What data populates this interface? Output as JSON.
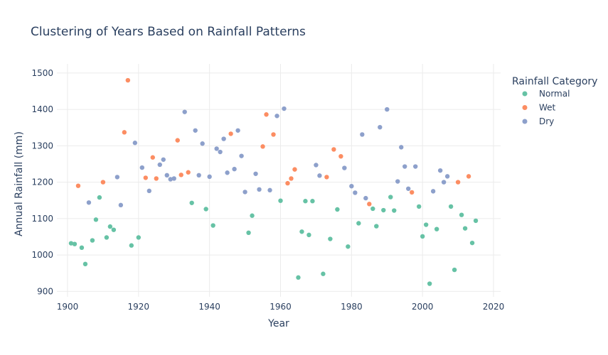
{
  "chart_data": {
    "type": "scatter",
    "title": "Clustering of Years Based on Rainfall Patterns",
    "xlabel": "Year",
    "ylabel": "Annual Rainfall (mm)",
    "xlim": [
      1897,
      2022
    ],
    "ylim": [
      885,
      1525
    ],
    "xticks": [
      1900,
      1920,
      1940,
      1960,
      1980,
      2000,
      2020
    ],
    "yticks": [
      900,
      1000,
      1100,
      1200,
      1300,
      1400,
      1500
    ],
    "grid": true,
    "legend": {
      "title": "Rainfall Category",
      "position": "right"
    },
    "series": [
      {
        "name": "Normal",
        "color": "#66c2a5",
        "points": [
          [
            1901,
            1032
          ],
          [
            1902,
            1030
          ],
          [
            1904,
            1020
          ],
          [
            1905,
            975
          ],
          [
            1907,
            1040
          ],
          [
            1908,
            1097
          ],
          [
            1909,
            1158
          ],
          [
            1911,
            1048
          ],
          [
            1912,
            1078
          ],
          [
            1913,
            1069
          ],
          [
            1918,
            1026
          ],
          [
            1920,
            1048
          ],
          [
            1935,
            1143
          ],
          [
            1939,
            1126
          ],
          [
            1941,
            1081
          ],
          [
            1951,
            1061
          ],
          [
            1952,
            1108
          ],
          [
            1960,
            1149
          ],
          [
            1965,
            938
          ],
          [
            1966,
            1064
          ],
          [
            1967,
            1148
          ],
          [
            1968,
            1055
          ],
          [
            1969,
            1148
          ],
          [
            1972,
            948
          ],
          [
            1974,
            1044
          ],
          [
            1976,
            1125
          ],
          [
            1979,
            1023
          ],
          [
            1982,
            1087
          ],
          [
            1986,
            1127
          ],
          [
            1987,
            1079
          ],
          [
            1989,
            1123
          ],
          [
            1991,
            1159
          ],
          [
            1992,
            1122
          ],
          [
            1999,
            1133
          ],
          [
            2000,
            1051
          ],
          [
            2001,
            1083
          ],
          [
            2002,
            921
          ],
          [
            2004,
            1071
          ],
          [
            2008,
            1133
          ],
          [
            2009,
            959
          ],
          [
            2011,
            1110
          ],
          [
            2012,
            1073
          ],
          [
            2014,
            1033
          ],
          [
            2015,
            1094
          ]
        ]
      },
      {
        "name": "Wet",
        "color": "#fc8d62",
        "points": [
          [
            1903,
            1190
          ],
          [
            1910,
            1200
          ],
          [
            1916,
            1337
          ],
          [
            1917,
            1480
          ],
          [
            1922,
            1212
          ],
          [
            1924,
            1268
          ],
          [
            1925,
            1210
          ],
          [
            1931,
            1315
          ],
          [
            1932,
            1220
          ],
          [
            1934,
            1227
          ],
          [
            1946,
            1333
          ],
          [
            1955,
            1298
          ],
          [
            1956,
            1386
          ],
          [
            1958,
            1331
          ],
          [
            1962,
            1197
          ],
          [
            1963,
            1210
          ],
          [
            1964,
            1235
          ],
          [
            1973,
            1214
          ],
          [
            1975,
            1290
          ],
          [
            1977,
            1271
          ],
          [
            1985,
            1140
          ],
          [
            1997,
            1172
          ],
          [
            2010,
            1200
          ],
          [
            2013,
            1216
          ]
        ]
      },
      {
        "name": "Dry",
        "color": "#8da0cb",
        "points": [
          [
            1906,
            1144
          ],
          [
            1914,
            1214
          ],
          [
            1915,
            1137
          ],
          [
            1919,
            1308
          ],
          [
            1921,
            1240
          ],
          [
            1923,
            1176
          ],
          [
            1926,
            1248
          ],
          [
            1927,
            1262
          ],
          [
            1928,
            1219
          ],
          [
            1929,
            1208
          ],
          [
            1930,
            1210
          ],
          [
            1933,
            1393
          ],
          [
            1936,
            1342
          ],
          [
            1937,
            1219
          ],
          [
            1938,
            1306
          ],
          [
            1940,
            1215
          ],
          [
            1942,
            1292
          ],
          [
            1943,
            1283
          ],
          [
            1944,
            1319
          ],
          [
            1945,
            1226
          ],
          [
            1947,
            1236
          ],
          [
            1948,
            1342
          ],
          [
            1949,
            1272
          ],
          [
            1950,
            1173
          ],
          [
            1953,
            1223
          ],
          [
            1954,
            1180
          ],
          [
            1957,
            1178
          ],
          [
            1959,
            1382
          ],
          [
            1961,
            1402
          ],
          [
            1970,
            1247
          ],
          [
            1971,
            1218
          ],
          [
            1978,
            1239
          ],
          [
            1980,
            1189
          ],
          [
            1981,
            1171
          ],
          [
            1983,
            1331
          ],
          [
            1984,
            1156
          ],
          [
            1988,
            1351
          ],
          [
            1990,
            1400
          ],
          [
            1993,
            1202
          ],
          [
            1994,
            1296
          ],
          [
            1995,
            1243
          ],
          [
            1996,
            1182
          ],
          [
            1998,
            1243
          ],
          [
            2003,
            1175
          ],
          [
            2005,
            1232
          ],
          [
            2006,
            1200
          ],
          [
            2007,
            1216
          ]
        ]
      }
    ]
  }
}
